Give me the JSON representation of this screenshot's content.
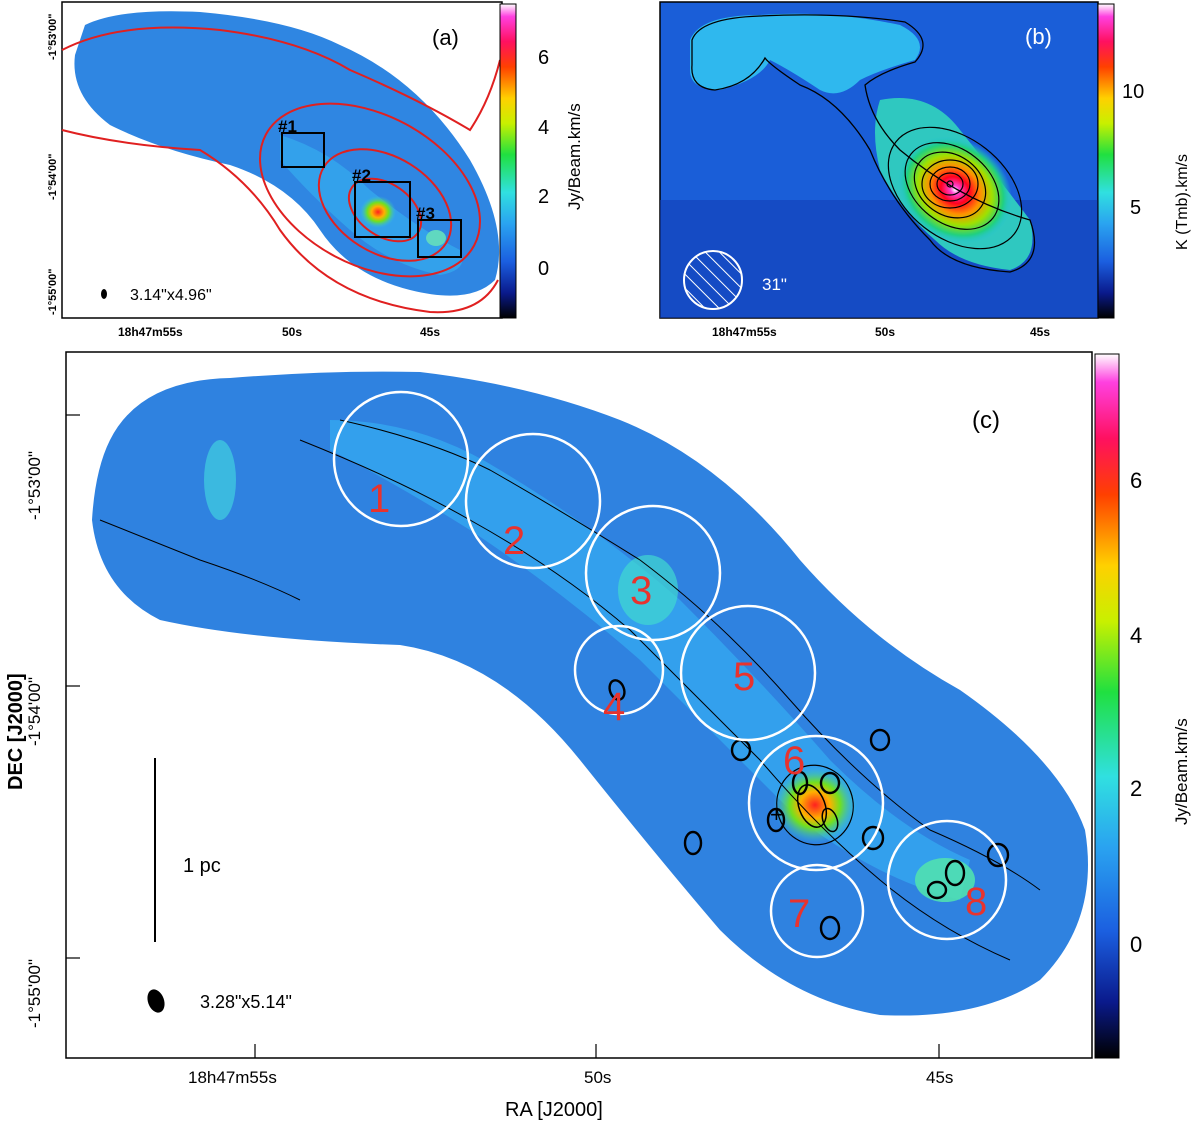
{
  "figure": {
    "panel_a": {
      "label": "(a)",
      "colorbar_unit": "Jy/Beam.km/s",
      "colorbar_ticks": [
        "6",
        "4",
        "2",
        "0"
      ],
      "dec_ticks": [
        "-1°53'00\"",
        "-1°54'00\"",
        "-1°55'00\""
      ],
      "ra_ticks": [
        "18h47m55s",
        "50s",
        "45s"
      ],
      "beam": "3.14\"x4.96\"",
      "boxes": [
        "#1",
        "#2",
        "#3"
      ]
    },
    "panel_b": {
      "label": "(b)",
      "colorbar_unit": "K (Tmb).km/s",
      "colorbar_ticks": [
        "10",
        "5"
      ],
      "ra_ticks": [
        "18h47m55s",
        "50s",
        "45s"
      ],
      "beam": "31\""
    },
    "panel_c": {
      "label": "(c)",
      "colorbar_unit": "Jy/Beam.km/s",
      "colorbar_ticks": [
        "6",
        "4",
        "2",
        "0"
      ],
      "dec_ticks": [
        "-1°53'00\"",
        "-1°54'00\"",
        "-1°55'00\""
      ],
      "ra_ticks": [
        "18h47m55s",
        "50s",
        "45s"
      ],
      "xlabel": "RA [J2000]",
      "ylabel": "DEC [J2000]",
      "scale_bar": "1 pc",
      "beam": "3.28\"x5.14\"",
      "regions": [
        "1",
        "2",
        "3",
        "4",
        "5",
        "6",
        "7",
        "8"
      ]
    }
  }
}
